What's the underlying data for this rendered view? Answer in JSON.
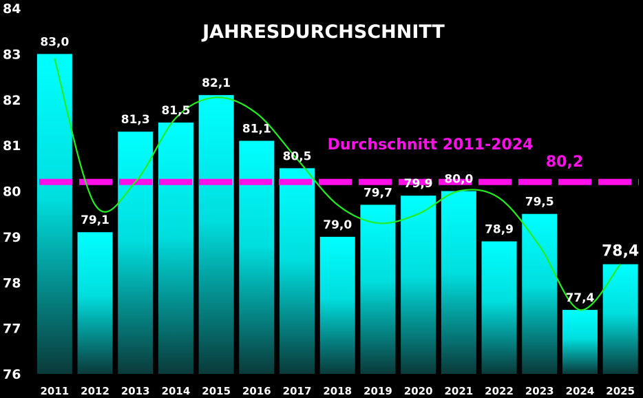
{
  "chart_data": {
    "type": "bar",
    "title": "JAHRESDURCHSCHNITT",
    "categories": [
      "2011",
      "2012",
      "2013",
      "2014",
      "2015",
      "2016",
      "2017",
      "2018",
      "2019",
      "2020",
      "2021",
      "2022",
      "2023",
      "2024",
      "2025"
    ],
    "values": [
      83.0,
      79.1,
      81.3,
      81.5,
      82.1,
      81.1,
      80.5,
      79.0,
      79.7,
      79.9,
      80.0,
      78.9,
      79.5,
      77.4,
      78.4
    ],
    "data_labels": [
      "83,0",
      "79,1",
      "81,3",
      "81,5",
      "82,1",
      "81,1",
      "80,5",
      "79,0",
      "79,7",
      "79,9",
      "80,0",
      "78,9",
      "79,5",
      "77,4",
      "78,4"
    ],
    "highlight_index": 14,
    "ylim": [
      76,
      84
    ],
    "yticks": [
      76,
      77,
      78,
      79,
      80,
      81,
      82,
      83,
      84
    ],
    "xlabel": "",
    "ylabel": "",
    "grid": false,
    "average": {
      "label": "Durchschnitt 2011-2024",
      "value": 80.2,
      "value_label": "80,2"
    },
    "trend_line": {
      "type": "smoothed",
      "values": [
        82.9,
        79.7,
        80.2,
        81.6,
        82.05,
        81.7,
        80.7,
        79.7,
        79.3,
        79.5,
        80.0,
        79.85,
        78.8,
        77.4,
        78.4
      ]
    },
    "colors": {
      "background": "#000000",
      "bar_top": "#00ffff",
      "bar_bottom": "#0a3a3a",
      "average": "#ff10e8",
      "trend": "#22ee22",
      "highlight": "#ff1010",
      "text": "#ffffff"
    }
  }
}
